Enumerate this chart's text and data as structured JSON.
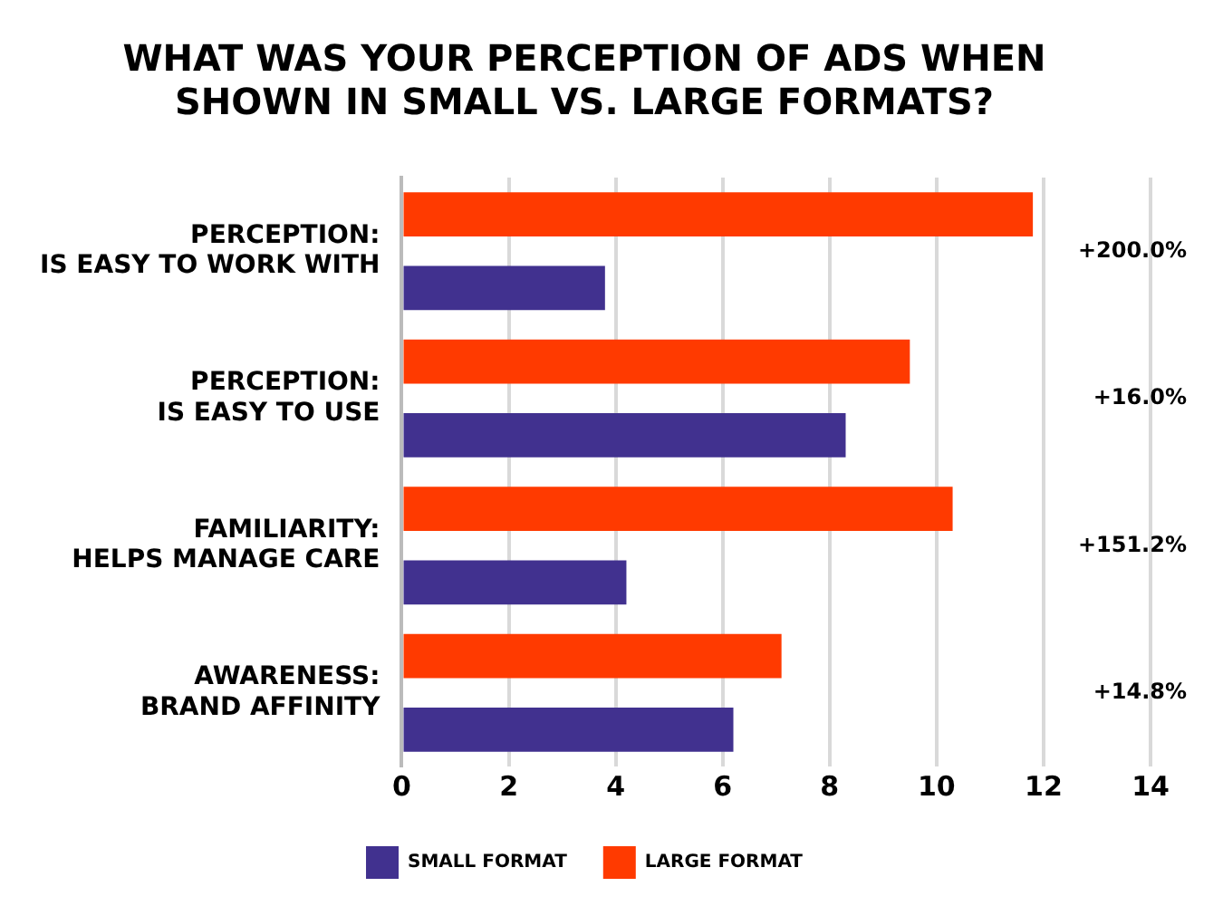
{
  "chart_data": {
    "type": "bar",
    "orientation": "horizontal",
    "title": "WHAT WAS YOUR PERCEPTION OF ADS WHEN\nSHOWN IN SMALL VS. LARGE FORMATS?",
    "categories": [
      "PERCEPTION:\nIS EASY TO WORK WITH",
      "PERCEPTION:\nIS EASY TO USE",
      "FAMILIARITY:\nHELPS MANAGE CARE",
      "AWARENESS:\nBRAND AFFINITY"
    ],
    "series": [
      {
        "name": "SMALL FORMAT",
        "color": "#41318f",
        "values": [
          3.8,
          8.3,
          4.2,
          6.2
        ]
      },
      {
        "name": "LARGE FORMAT",
        "color": "#ff3a00",
        "values": [
          11.8,
          9.5,
          10.3,
          7.1
        ]
      }
    ],
    "xlim": [
      0,
      14
    ],
    "xticks": [
      0,
      2,
      4,
      6,
      8,
      10,
      12,
      14
    ],
    "grid": "x",
    "legend": "bottom",
    "annotations": [
      "+200.0%",
      "+16.0%",
      "+151.2%",
      "+14.8%"
    ]
  }
}
